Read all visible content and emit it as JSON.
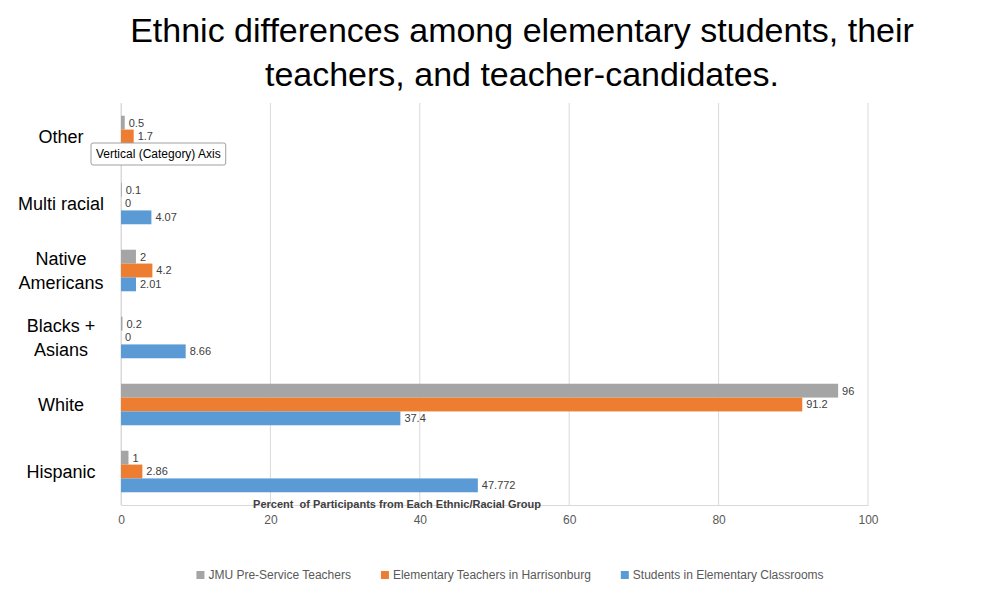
{
  "chart_data": {
    "type": "bar",
    "orientation": "horizontal",
    "title": [
      "Ethnic differences among elementary students, their",
      "teachers, and teacher-candidates."
    ],
    "annotation": "Vertical (Category) Axis",
    "xlabel": "Percent  of Participants from Each Ethnic/Racial Group",
    "categories": [
      "Other",
      "Multi racial",
      "Native Americans",
      "Blacks + Asians",
      "White",
      "Hispanic"
    ],
    "series": [
      {
        "name": "JMU Pre-Service Teachers",
        "color": "#a5a5a5",
        "values": [
          0.5,
          0.1,
          2,
          0.2,
          96,
          1
        ]
      },
      {
        "name": "Elementary Teachers in Harrisonburg",
        "color": "#ed7d31",
        "values": [
          1.7,
          0,
          4.2,
          0,
          91.2,
          2.86
        ]
      },
      {
        "name": "Students in Elementary Classrooms",
        "color": "#5b9bd5",
        "values": [
          null,
          4.07,
          2.01,
          8.66,
          37.4,
          47.772
        ]
      }
    ],
    "xlim": [
      0,
      100
    ],
    "xticks": [
      0,
      20,
      40,
      60,
      80,
      100
    ],
    "grid": true,
    "legend": "bottom",
    "data_labels": true
  }
}
